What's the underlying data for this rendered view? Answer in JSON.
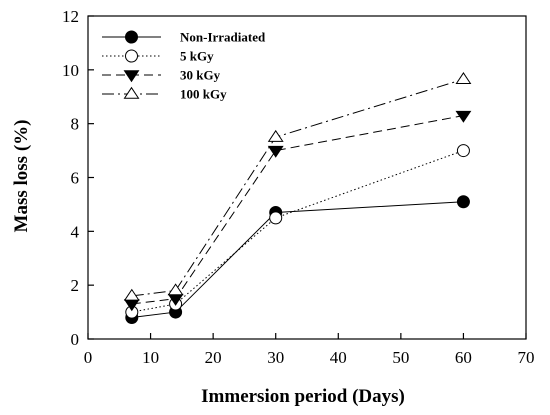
{
  "chart_data": {
    "type": "line",
    "title": "",
    "xlabel": "Immersion period (Days)",
    "ylabel": "Mass loss (%)",
    "xlim": [
      0,
      70
    ],
    "ylim": [
      0,
      12
    ],
    "xticks": [
      0,
      10,
      20,
      30,
      40,
      50,
      60,
      70
    ],
    "yticks": [
      0,
      2,
      4,
      6,
      8,
      10,
      12
    ],
    "grid": false,
    "legend_position": "top-left",
    "x": [
      7,
      14,
      30,
      60
    ],
    "series": [
      {
        "name": "Non-Irradiated",
        "values": [
          0.8,
          1.0,
          4.7,
          5.1
        ],
        "marker": "filled-circle",
        "line_style": "solid"
      },
      {
        "name": "5 kGy",
        "values": [
          1.0,
          1.3,
          4.5,
          7.0
        ],
        "marker": "open-circle",
        "line_style": "dotted"
      },
      {
        "name": "30 kGy",
        "values": [
          1.3,
          1.5,
          7.0,
          8.3
        ],
        "marker": "filled-triangle-down",
        "line_style": "dashed"
      },
      {
        "name": "100 kGy",
        "values": [
          1.6,
          1.8,
          7.5,
          9.65
        ],
        "marker": "open-triangle-up",
        "line_style": "dash-dot"
      }
    ]
  }
}
